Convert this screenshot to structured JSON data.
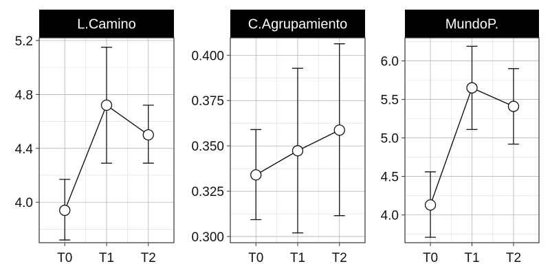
{
  "chart_data": [
    {
      "type": "line",
      "panel_title": "L.Camino",
      "categories": [
        "T0",
        "T1",
        "T2"
      ],
      "values": [
        3.94,
        4.72,
        4.5
      ],
      "error_low": [
        3.72,
        4.29,
        4.29
      ],
      "error_high": [
        4.17,
        5.15,
        4.72
      ],
      "ylim": [
        3.7,
        5.22
      ],
      "yticks": [
        4.0,
        4.4,
        4.8,
        5.2
      ],
      "ytick_labels": [
        "4.0",
        "4.4",
        "4.8",
        "5.2"
      ],
      "grid": true
    },
    {
      "type": "line",
      "panel_title": "C.Agrupamiento",
      "categories": [
        "T0",
        "T1",
        "T2"
      ],
      "values": [
        0.334,
        0.3473,
        0.3587
      ],
      "error_low": [
        0.3093,
        0.302,
        0.3115
      ],
      "error_high": [
        0.359,
        0.3928,
        0.4063
      ],
      "ylim": [
        0.2966,
        0.4096
      ],
      "yticks": [
        0.3,
        0.325,
        0.35,
        0.375,
        0.4
      ],
      "ytick_labels": [
        "0.300",
        "0.325",
        "0.350",
        "0.375",
        "0.400"
      ],
      "grid": true
    },
    {
      "type": "line",
      "panel_title": "MundoP.",
      "categories": [
        "T0",
        "T1",
        "T2"
      ],
      "values": [
        4.13,
        5.65,
        5.41
      ],
      "error_low": [
        3.71,
        5.11,
        4.92
      ],
      "error_high": [
        4.56,
        6.19,
        5.9
      ],
      "ylim": [
        3.64,
        6.3
      ],
      "yticks": [
        4.0,
        4.5,
        5.0,
        5.5,
        6.0
      ],
      "ytick_labels": [
        "4.0",
        "4.5",
        "5.0",
        "5.5",
        "6.0"
      ],
      "grid": true
    }
  ]
}
